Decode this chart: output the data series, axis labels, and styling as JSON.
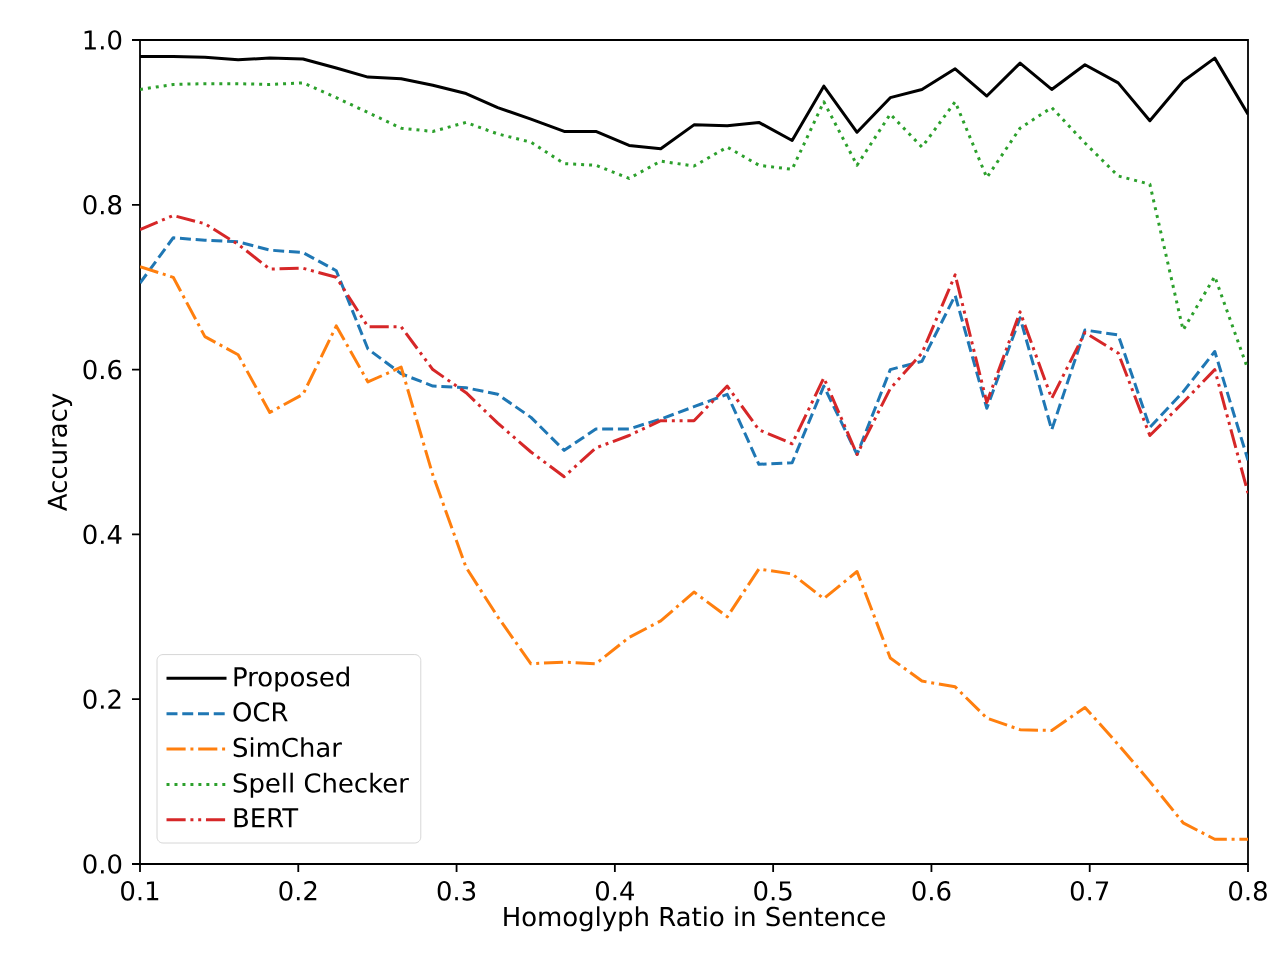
{
  "chart_data": {
    "type": "line",
    "xlabel": "Homoglyph Ratio in Sentence",
    "ylabel": "Accuracy",
    "x": [
      0.1,
      0.121,
      0.141,
      0.162,
      0.182,
      0.203,
      0.224,
      0.244,
      0.265,
      0.285,
      0.306,
      0.326,
      0.347,
      0.368,
      0.388,
      0.409,
      0.429,
      0.45,
      0.471,
      0.491,
      0.512,
      0.532,
      0.553,
      0.574,
      0.594,
      0.615,
      0.635,
      0.656,
      0.676,
      0.697,
      0.718,
      0.738,
      0.759,
      0.779,
      0.8
    ],
    "series": [
      {
        "name": "Proposed",
        "color": "#000000",
        "line_style": "solid",
        "values": [
          0.98,
          0.98,
          0.979,
          0.976,
          0.978,
          0.977,
          0.966,
          0.955,
          0.953,
          0.945,
          0.935,
          0.918,
          0.904,
          0.889,
          0.889,
          0.872,
          0.868,
          0.897,
          0.896,
          0.9,
          0.878,
          0.944,
          0.888,
          0.93,
          0.94,
          0.965,
          0.932,
          0.972,
          0.94,
          0.97,
          0.948,
          0.902,
          0.95,
          0.978,
          0.91
        ]
      },
      {
        "name": "OCR",
        "color": "#1f77b4",
        "line_style": "dashed",
        "values": [
          0.705,
          0.76,
          0.757,
          0.755,
          0.745,
          0.742,
          0.72,
          0.625,
          0.595,
          0.58,
          0.578,
          0.57,
          0.542,
          0.502,
          0.528,
          0.528,
          0.54,
          0.555,
          0.57,
          0.485,
          0.487,
          0.58,
          0.497,
          0.6,
          0.61,
          0.69,
          0.553,
          0.663,
          0.527,
          0.648,
          0.642,
          0.53,
          0.573,
          0.622,
          0.49
        ]
      },
      {
        "name": "SimChar",
        "color": "#ff7f0e",
        "line_style": "dashdot",
        "values": [
          0.725,
          0.712,
          0.64,
          0.618,
          0.548,
          0.57,
          0.653,
          0.585,
          0.603,
          0.472,
          0.36,
          0.3,
          0.243,
          0.245,
          0.243,
          0.275,
          0.295,
          0.33,
          0.3,
          0.358,
          0.352,
          0.322,
          0.355,
          0.25,
          0.222,
          0.215,
          0.177,
          0.163,
          0.162,
          0.19,
          0.145,
          0.1,
          0.05,
          0.03,
          0.03
        ]
      },
      {
        "name": "Spell Checker",
        "color": "#2ca02c",
        "line_style": "dotted",
        "values": [
          0.94,
          0.946,
          0.947,
          0.947,
          0.946,
          0.948,
          0.93,
          0.912,
          0.893,
          0.889,
          0.9,
          0.886,
          0.876,
          0.85,
          0.848,
          0.832,
          0.853,
          0.847,
          0.87,
          0.848,
          0.843,
          0.925,
          0.848,
          0.91,
          0.87,
          0.925,
          0.833,
          0.893,
          0.918,
          0.875,
          0.835,
          0.825,
          0.648,
          0.713,
          0.6
        ]
      },
      {
        "name": "BERT",
        "color": "#d62728",
        "line_style": "dashdotdot",
        "values": [
          0.77,
          0.787,
          0.777,
          0.752,
          0.722,
          0.723,
          0.712,
          0.652,
          0.652,
          0.6,
          0.572,
          0.535,
          0.5,
          0.47,
          0.505,
          0.52,
          0.538,
          0.538,
          0.58,
          0.527,
          0.51,
          0.59,
          0.497,
          0.577,
          0.62,
          0.715,
          0.56,
          0.67,
          0.565,
          0.645,
          0.62,
          0.52,
          0.56,
          0.6,
          0.45
        ]
      }
    ],
    "xlim": [
      0.1,
      0.8
    ],
    "ylim": [
      0,
      1.0
    ],
    "xticks": [
      0.1,
      0.2,
      0.3,
      0.4,
      0.5,
      0.6,
      0.7,
      0.8
    ],
    "yticks": [
      {
        "value": 0,
        "label": "0.0"
      },
      0.2,
      0.4,
      0.6,
      0.8,
      {
        "value": 1.0,
        "label": "1.0"
      }
    ],
    "legend": "bottom left"
  }
}
